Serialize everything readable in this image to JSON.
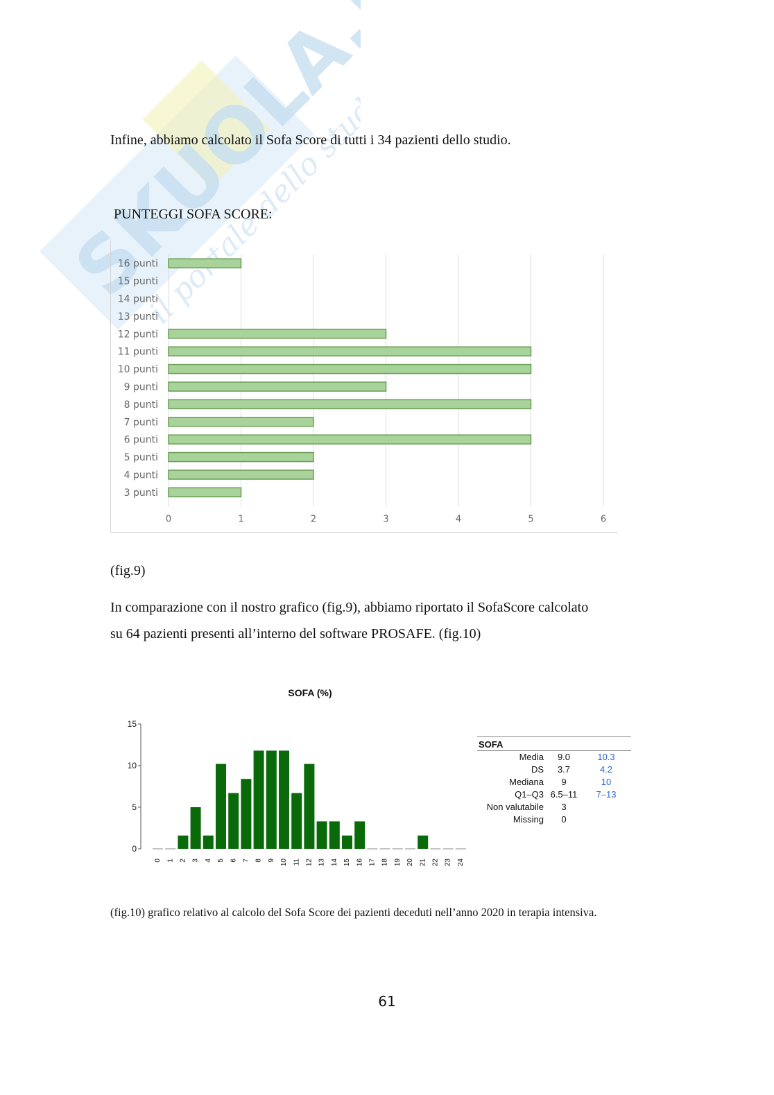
{
  "intro_text": "Infine, abbiamo calcolato il Sofa Score di tutti i 34 pazienti dello studio.",
  "chart1_heading": "PUNTEGGI SOFA SCORE:",
  "fig9_label": "(fig.9)",
  "comparison_line1": "In comparazione con il nostro grafico (fig.9), abbiamo riportato il SofaScore calcolato",
  "comparison_line2": "su 64 pazienti presenti all’interno del software PROSAFE. (fig.10)",
  "fig10_caption": "(fig.10) grafico relativo al calcolo del Sofa Score dei pazienti deceduti nell’anno 2020 in terapia intensiva.",
  "page_number": "61",
  "watermark": {
    "text_main": "SKUOLA.net",
    "text_sub": "il portale dello studente"
  },
  "colors": {
    "bar1_fill": "#a8d39a",
    "bar1_stroke": "#6b9e54",
    "bar2_fill": "#0a6a0a",
    "stats_blue": "#2a66d0"
  },
  "stats_table": {
    "title": "SOFA",
    "rows": [
      {
        "label": "Media",
        "v1": "9.0",
        "v2": "10.3"
      },
      {
        "label": "DS",
        "v1": "3.7",
        "v2": "4.2"
      },
      {
        "label": "Mediana",
        "v1": "9",
        "v2": "10"
      },
      {
        "label": "Q1–Q3",
        "v1": "6.5–11",
        "v2": "7–13"
      },
      {
        "label": "Non valutabile",
        "v1": "3",
        "v2": ""
      },
      {
        "label": "Missing",
        "v1": "0",
        "v2": ""
      }
    ]
  },
  "chart_data": [
    {
      "type": "bar",
      "orientation": "horizontal",
      "categories": [
        "16 punti",
        "15 punti",
        "14 punti",
        "13 punti",
        "12 punti",
        "11 punti",
        "10 punti",
        "9 punti",
        "8 punti",
        "7 punti",
        "6 punti",
        "5 punti",
        "4 punti",
        "3 punti"
      ],
      "values": [
        1,
        0,
        0,
        0,
        3,
        5,
        5,
        3,
        5,
        2,
        5,
        2,
        2,
        1
      ],
      "xlim": [
        0,
        6
      ],
      "xticks": [
        "0",
        "1",
        "2",
        "3",
        "4",
        "5",
        "6"
      ],
      "grid": true
    },
    {
      "type": "bar",
      "title": "SOFA (%)",
      "categories": [
        "0",
        "1",
        "2",
        "3",
        "4",
        "5",
        "6",
        "7",
        "8",
        "9",
        "10",
        "11",
        "12",
        "13",
        "14",
        "15",
        "16",
        "17",
        "18",
        "19",
        "20",
        "21",
        "22",
        "23",
        "24"
      ],
      "values": [
        0,
        0,
        1.6,
        5,
        1.6,
        10.2,
        6.7,
        8.4,
        11.8,
        11.8,
        11.8,
        6.7,
        10.2,
        3.3,
        3.3,
        1.6,
        3.3,
        0,
        0,
        0,
        0,
        1.6,
        0,
        0,
        0
      ],
      "ylim": [
        0,
        15
      ],
      "yticks": [
        "0",
        "5",
        "10",
        "15"
      ],
      "grid": false
    }
  ]
}
